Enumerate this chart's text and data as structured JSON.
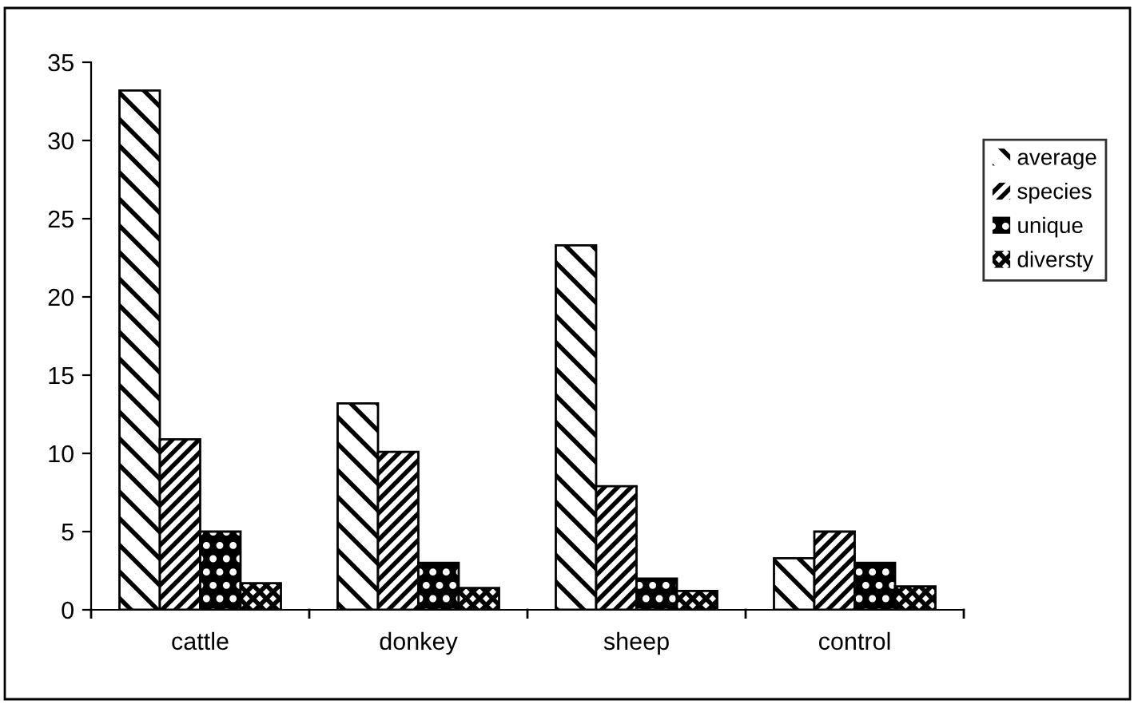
{
  "chart_data": {
    "type": "bar",
    "categories": [
      "cattle",
      "donkey",
      "sheep",
      "control"
    ],
    "series": [
      {
        "name": "average",
        "color": "#000000",
        "values": [
          33.2,
          13.2,
          23.3,
          3.3
        ]
      },
      {
        "name": "species",
        "color": "#000000",
        "values": [
          10.9,
          10.1,
          7.9,
          5.0
        ]
      },
      {
        "name": "unique",
        "color": "#000000",
        "values": [
          5.0,
          3.0,
          2.0,
          3.0
        ]
      },
      {
        "name": "diversty",
        "color": "#000000",
        "values": [
          1.7,
          1.4,
          1.2,
          1.5
        ]
      }
    ],
    "ylim": [
      0,
      35
    ],
    "yticks": [
      0,
      5,
      10,
      15,
      20,
      25,
      30,
      35
    ],
    "grid": false,
    "legend": "right"
  }
}
